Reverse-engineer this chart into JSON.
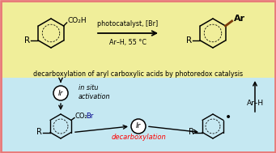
{
  "top_bg": "#f0ee9a",
  "bottom_bg": "#c5e8f2",
  "border_color": "#e87878",
  "top_text": "decarboxylation of aryl carboxylic acids by photoredox catalysis",
  "arrow_label_top": "photocatalyst, [Br]",
  "arrow_label_bottom": "Ar–H, 55 °C",
  "ir_label": "Ir",
  "in_situ_text": "in situ\nactivation",
  "decarboxylation_text": "decarboxylation",
  "arh_text": "Ar–H",
  "co2h": "CO₂H",
  "co2br": "CO₂Br",
  "ar_label": "Ar",
  "radical_dot": "•",
  "R_label": "R",
  "ar_bond_color": "#7b3a0a",
  "co2br_color": "#00008b"
}
